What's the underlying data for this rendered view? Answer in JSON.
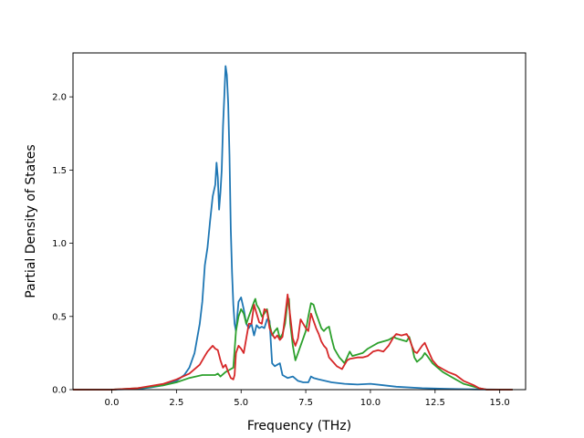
{
  "chart_data": {
    "type": "line",
    "title": "",
    "xlabel": "Frequency (THz)",
    "ylabel": "Partial Density of States",
    "xlim": [
      -1.5,
      16.0
    ],
    "ylim": [
      0.0,
      2.3
    ],
    "xticks": [
      0.0,
      2.5,
      5.0,
      7.5,
      10.0,
      12.5,
      15.0
    ],
    "xtick_labels": [
      "0.0",
      "2.5",
      "5.0",
      "7.5",
      "10.0",
      "12.5",
      "15.0"
    ],
    "yticks": [
      0.0,
      0.5,
      1.0,
      1.5,
      2.0
    ],
    "ytick_labels": [
      "0.0",
      "0.5",
      "1.0",
      "1.5",
      "2.0"
    ],
    "grid": false,
    "legend": "none",
    "series": [
      {
        "color": "#1f77b4",
        "points": [
          [
            -1.5,
            0
          ],
          [
            0,
            0
          ],
          [
            1,
            0.005
          ],
          [
            1.5,
            0.015
          ],
          [
            2,
            0.03
          ],
          [
            2.5,
            0.06
          ],
          [
            2.8,
            0.1
          ],
          [
            3,
            0.15
          ],
          [
            3.2,
            0.25
          ],
          [
            3.4,
            0.45
          ],
          [
            3.5,
            0.6
          ],
          [
            3.6,
            0.85
          ],
          [
            3.7,
            0.97
          ],
          [
            3.8,
            1.15
          ],
          [
            3.9,
            1.32
          ],
          [
            4,
            1.4
          ],
          [
            4.05,
            1.55
          ],
          [
            4.1,
            1.45
          ],
          [
            4.15,
            1.23
          ],
          [
            4.2,
            1.35
          ],
          [
            4.25,
            1.5
          ],
          [
            4.3,
            1.8
          ],
          [
            4.35,
            2.0
          ],
          [
            4.4,
            2.21
          ],
          [
            4.45,
            2.15
          ],
          [
            4.5,
            1.95
          ],
          [
            4.55,
            1.6
          ],
          [
            4.6,
            1.1
          ],
          [
            4.65,
            0.8
          ],
          [
            4.7,
            0.58
          ],
          [
            4.75,
            0.45
          ],
          [
            4.8,
            0.4
          ],
          [
            4.9,
            0.6
          ],
          [
            5,
            0.63
          ],
          [
            5.1,
            0.55
          ],
          [
            5.2,
            0.45
          ],
          [
            5.3,
            0.42
          ],
          [
            5.4,
            0.45
          ],
          [
            5.5,
            0.37
          ],
          [
            5.6,
            0.44
          ],
          [
            5.7,
            0.42
          ],
          [
            5.8,
            0.43
          ],
          [
            5.9,
            0.42
          ],
          [
            6,
            0.48
          ],
          [
            6.1,
            0.47
          ],
          [
            6.2,
            0.18
          ],
          [
            6.3,
            0.16
          ],
          [
            6.4,
            0.17
          ],
          [
            6.5,
            0.18
          ],
          [
            6.6,
            0.1
          ],
          [
            6.7,
            0.09
          ],
          [
            6.8,
            0.08
          ],
          [
            7,
            0.09
          ],
          [
            7.2,
            0.06
          ],
          [
            7.4,
            0.05
          ],
          [
            7.6,
            0.05
          ],
          [
            7.7,
            0.09
          ],
          [
            7.8,
            0.08
          ],
          [
            8,
            0.07
          ],
          [
            8.5,
            0.05
          ],
          [
            9,
            0.04
          ],
          [
            9.5,
            0.035
          ],
          [
            10,
            0.04
          ],
          [
            10.5,
            0.03
          ],
          [
            11,
            0.02
          ],
          [
            12,
            0.01
          ],
          [
            13,
            0.005
          ],
          [
            14,
            0.002
          ],
          [
            15.5,
            0
          ]
        ]
      },
      {
        "color": "#2ca02c",
        "points": [
          [
            -1.5,
            0
          ],
          [
            0,
            0
          ],
          [
            1,
            0.01
          ],
          [
            2,
            0.03
          ],
          [
            2.5,
            0.05
          ],
          [
            3,
            0.08
          ],
          [
            3.5,
            0.1
          ],
          [
            4,
            0.1
          ],
          [
            4.1,
            0.11
          ],
          [
            4.2,
            0.09
          ],
          [
            4.4,
            0.12
          ],
          [
            4.6,
            0.14
          ],
          [
            4.7,
            0.15
          ],
          [
            4.8,
            0.4
          ],
          [
            4.9,
            0.5
          ],
          [
            5,
            0.55
          ],
          [
            5.1,
            0.52
          ],
          [
            5.2,
            0.45
          ],
          [
            5.3,
            0.5
          ],
          [
            5.4,
            0.55
          ],
          [
            5.5,
            0.6
          ],
          [
            5.55,
            0.62
          ],
          [
            5.6,
            0.58
          ],
          [
            5.7,
            0.55
          ],
          [
            5.8,
            0.5
          ],
          [
            5.9,
            0.52
          ],
          [
            6,
            0.55
          ],
          [
            6.1,
            0.45
          ],
          [
            6.2,
            0.37
          ],
          [
            6.3,
            0.4
          ],
          [
            6.4,
            0.42
          ],
          [
            6.5,
            0.35
          ],
          [
            6.6,
            0.38
          ],
          [
            6.7,
            0.45
          ],
          [
            6.8,
            0.6
          ],
          [
            6.85,
            0.62
          ],
          [
            6.9,
            0.45
          ],
          [
            7,
            0.3
          ],
          [
            7.1,
            0.2
          ],
          [
            7.2,
            0.25
          ],
          [
            7.3,
            0.3
          ],
          [
            7.4,
            0.35
          ],
          [
            7.5,
            0.4
          ],
          [
            7.6,
            0.5
          ],
          [
            7.7,
            0.59
          ],
          [
            7.8,
            0.58
          ],
          [
            7.9,
            0.52
          ],
          [
            8,
            0.47
          ],
          [
            8.1,
            0.42
          ],
          [
            8.2,
            0.4
          ],
          [
            8.3,
            0.42
          ],
          [
            8.4,
            0.43
          ],
          [
            8.5,
            0.35
          ],
          [
            8.6,
            0.28
          ],
          [
            8.7,
            0.25
          ],
          [
            8.8,
            0.22
          ],
          [
            8.9,
            0.2
          ],
          [
            9,
            0.18
          ],
          [
            9.1,
            0.22
          ],
          [
            9.2,
            0.26
          ],
          [
            9.3,
            0.23
          ],
          [
            9.5,
            0.24
          ],
          [
            9.7,
            0.25
          ],
          [
            9.9,
            0.28
          ],
          [
            10.1,
            0.3
          ],
          [
            10.3,
            0.32
          ],
          [
            10.5,
            0.33
          ],
          [
            10.7,
            0.34
          ],
          [
            10.9,
            0.36
          ],
          [
            11,
            0.35
          ],
          [
            11.2,
            0.34
          ],
          [
            11.4,
            0.33
          ],
          [
            11.5,
            0.36
          ],
          [
            11.6,
            0.3
          ],
          [
            11.7,
            0.22
          ],
          [
            11.8,
            0.19
          ],
          [
            12,
            0.22
          ],
          [
            12.1,
            0.25
          ],
          [
            12.2,
            0.23
          ],
          [
            12.4,
            0.18
          ],
          [
            12.6,
            0.15
          ],
          [
            12.8,
            0.12
          ],
          [
            13,
            0.1
          ],
          [
            13.3,
            0.07
          ],
          [
            13.6,
            0.04
          ],
          [
            14,
            0.02
          ],
          [
            14.2,
            0.01
          ],
          [
            14.5,
            0
          ],
          [
            15.5,
            0
          ]
        ]
      },
      {
        "color": "#d62728",
        "points": [
          [
            -1.5,
            0
          ],
          [
            0,
            0
          ],
          [
            1,
            0.01
          ],
          [
            2,
            0.04
          ],
          [
            2.5,
            0.07
          ],
          [
            3,
            0.11
          ],
          [
            3.4,
            0.17
          ],
          [
            3.6,
            0.23
          ],
          [
            3.7,
            0.26
          ],
          [
            3.8,
            0.28
          ],
          [
            3.9,
            0.3
          ],
          [
            4,
            0.28
          ],
          [
            4.1,
            0.27
          ],
          [
            4.2,
            0.2
          ],
          [
            4.3,
            0.15
          ],
          [
            4.4,
            0.17
          ],
          [
            4.5,
            0.12
          ],
          [
            4.6,
            0.08
          ],
          [
            4.7,
            0.07
          ],
          [
            4.75,
            0.1
          ],
          [
            4.8,
            0.25
          ],
          [
            4.9,
            0.3
          ],
          [
            5,
            0.28
          ],
          [
            5.1,
            0.25
          ],
          [
            5.2,
            0.35
          ],
          [
            5.3,
            0.45
          ],
          [
            5.4,
            0.45
          ],
          [
            5.5,
            0.58
          ],
          [
            5.6,
            0.52
          ],
          [
            5.7,
            0.46
          ],
          [
            5.8,
            0.45
          ],
          [
            5.9,
            0.55
          ],
          [
            6,
            0.54
          ],
          [
            6.1,
            0.42
          ],
          [
            6.2,
            0.38
          ],
          [
            6.3,
            0.35
          ],
          [
            6.4,
            0.37
          ],
          [
            6.5,
            0.34
          ],
          [
            6.6,
            0.36
          ],
          [
            6.7,
            0.5
          ],
          [
            6.8,
            0.65
          ],
          [
            6.9,
            0.5
          ],
          [
            7,
            0.35
          ],
          [
            7.1,
            0.3
          ],
          [
            7.2,
            0.35
          ],
          [
            7.3,
            0.48
          ],
          [
            7.4,
            0.45
          ],
          [
            7.5,
            0.42
          ],
          [
            7.6,
            0.4
          ],
          [
            7.7,
            0.52
          ],
          [
            7.8,
            0.47
          ],
          [
            7.9,
            0.42
          ],
          [
            8,
            0.38
          ],
          [
            8.1,
            0.33
          ],
          [
            8.2,
            0.3
          ],
          [
            8.3,
            0.28
          ],
          [
            8.4,
            0.22
          ],
          [
            8.5,
            0.2
          ],
          [
            8.6,
            0.18
          ],
          [
            8.7,
            0.16
          ],
          [
            8.8,
            0.15
          ],
          [
            8.9,
            0.14
          ],
          [
            9,
            0.17
          ],
          [
            9.1,
            0.2
          ],
          [
            9.2,
            0.21
          ],
          [
            9.5,
            0.22
          ],
          [
            9.7,
            0.22
          ],
          [
            9.9,
            0.23
          ],
          [
            10.1,
            0.26
          ],
          [
            10.3,
            0.27
          ],
          [
            10.5,
            0.26
          ],
          [
            10.7,
            0.3
          ],
          [
            10.9,
            0.36
          ],
          [
            11,
            0.38
          ],
          [
            11.2,
            0.37
          ],
          [
            11.4,
            0.38
          ],
          [
            11.5,
            0.35
          ],
          [
            11.6,
            0.3
          ],
          [
            11.7,
            0.26
          ],
          [
            11.8,
            0.25
          ],
          [
            12,
            0.3
          ],
          [
            12.1,
            0.32
          ],
          [
            12.2,
            0.28
          ],
          [
            12.4,
            0.2
          ],
          [
            12.6,
            0.16
          ],
          [
            12.8,
            0.14
          ],
          [
            13,
            0.12
          ],
          [
            13.3,
            0.1
          ],
          [
            13.6,
            0.06
          ],
          [
            14,
            0.03
          ],
          [
            14.2,
            0.01
          ],
          [
            14.5,
            0
          ],
          [
            15.5,
            0
          ]
        ]
      }
    ]
  }
}
